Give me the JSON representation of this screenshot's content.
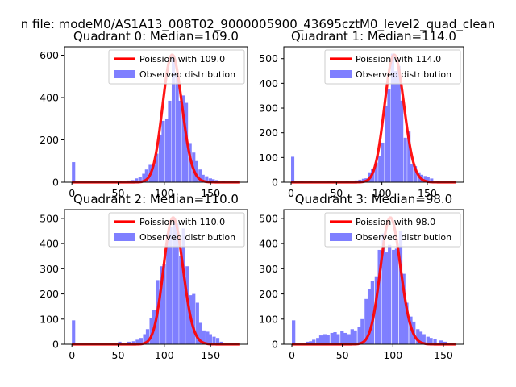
{
  "figure": {
    "suptitle": "n file: modeM0/AS1A13_008T02_9000005900_43695cztM0_level2_quad_clean"
  },
  "colors": {
    "observed": "#7f7fff",
    "poisson": "#ff0000"
  },
  "chart_data": [
    {
      "type": "bar",
      "title": "Quadrant 0: Median=109.0",
      "xlim": [
        -8,
        190
      ],
      "ylim": [
        0,
        640
      ],
      "xticks": [
        0,
        50,
        100,
        150
      ],
      "yticks": [
        0,
        200,
        400,
        600
      ],
      "legend_position": "top-right",
      "series": [
        {
          "name": "Observed distribution",
          "bin_width": 3.6,
          "bins": [
            [
              0,
              95
            ],
            [
              50,
              5
            ],
            [
              60,
              8
            ],
            [
              64,
              10
            ],
            [
              68,
              18
            ],
            [
              72,
              25
            ],
            [
              76,
              40
            ],
            [
              79,
              60
            ],
            [
              83,
              82
            ],
            [
              87,
              82
            ],
            [
              90,
              135
            ],
            [
              94,
              225
            ],
            [
              97,
              290
            ],
            [
              101,
              300
            ],
            [
              104,
              385
            ],
            [
              108,
              600
            ],
            [
              112,
              515
            ],
            [
              115,
              385
            ],
            [
              119,
              410
            ],
            [
              122,
              375
            ],
            [
              126,
              185
            ],
            [
              130,
              140
            ],
            [
              133,
              100
            ],
            [
              137,
              60
            ],
            [
              140,
              35
            ],
            [
              144,
              28
            ],
            [
              148,
              18
            ],
            [
              151,
              14
            ],
            [
              155,
              10
            ],
            [
              162,
              5
            ]
          ]
        },
        {
          "name": "Poission with 109.0",
          "mean": 109.0
        }
      ]
    },
    {
      "type": "bar",
      "title": "Quadrant 1: Median=114.0",
      "xlim": [
        -8,
        190
      ],
      "ylim": [
        0,
        548
      ],
      "xticks": [
        0,
        50,
        100,
        150
      ],
      "yticks": [
        0,
        100,
        200,
        300,
        400,
        500
      ],
      "legend_position": "top-right",
      "series": [
        {
          "name": "Observed distribution",
          "bin_width": 3.6,
          "bins": [
            [
              0,
              103
            ],
            [
              10,
              5
            ],
            [
              20,
              5
            ],
            [
              40,
              4
            ],
            [
              60,
              5
            ],
            [
              70,
              7
            ],
            [
              74,
              10
            ],
            [
              78,
              14
            ],
            [
              81,
              16
            ],
            [
              85,
              40
            ],
            [
              88,
              55
            ],
            [
              92,
              80
            ],
            [
              96,
              105
            ],
            [
              99,
              160
            ],
            [
              103,
              310
            ],
            [
              106,
              375
            ],
            [
              110,
              520
            ],
            [
              113,
              450
            ],
            [
              117,
              470
            ],
            [
              120,
              330
            ],
            [
              124,
              180
            ],
            [
              128,
              205
            ],
            [
              131,
              75
            ],
            [
              135,
              65
            ],
            [
              139,
              40
            ],
            [
              142,
              30
            ],
            [
              146,
              25
            ],
            [
              149,
              20
            ],
            [
              153,
              15
            ],
            [
              160,
              5
            ]
          ]
        },
        {
          "name": "Poission with 114.0",
          "mean": 114.0
        }
      ]
    },
    {
      "type": "bar",
      "title": "Quadrant 2: Median=110.0",
      "xlim": [
        -8,
        190
      ],
      "ylim": [
        0,
        535
      ],
      "xticks": [
        0,
        50,
        100,
        150
      ],
      "yticks": [
        0,
        100,
        200,
        300,
        400,
        500
      ],
      "legend_position": "top-right",
      "series": [
        {
          "name": "Observed distribution",
          "bin_width": 3.6,
          "bins": [
            [
              0,
              95
            ],
            [
              50,
              10
            ],
            [
              60,
              10
            ],
            [
              65,
              12
            ],
            [
              69,
              18
            ],
            [
              73,
              25
            ],
            [
              77,
              40
            ],
            [
              80,
              60
            ],
            [
              84,
              105
            ],
            [
              87,
              135
            ],
            [
              91,
              255
            ],
            [
              95,
              310
            ],
            [
              98,
              320
            ],
            [
              102,
              440
            ],
            [
              105,
              465
            ],
            [
              109,
              500
            ],
            [
              112,
              480
            ],
            [
              116,
              350
            ],
            [
              119,
              460
            ],
            [
              123,
              310
            ],
            [
              127,
              195
            ],
            [
              130,
              200
            ],
            [
              134,
              165
            ],
            [
              137,
              85
            ],
            [
              141,
              55
            ],
            [
              145,
              50
            ],
            [
              148,
              40
            ],
            [
              152,
              30
            ],
            [
              156,
              25
            ],
            [
              160,
              10
            ]
          ]
        },
        {
          "name": "Poission with 110.0",
          "mean": 110.0
        }
      ]
    },
    {
      "type": "bar",
      "title": "Quadrant 3: Median=98.0",
      "xlim": [
        -8,
        170
      ],
      "ylim": [
        0,
        535
      ],
      "xticks": [
        0,
        50,
        100,
        150
      ],
      "yticks": [
        0,
        100,
        200,
        300,
        400,
        500
      ],
      "legend_position": "top-right",
      "series": [
        {
          "name": "Observed distribution",
          "bin_width": 3.4,
          "bins": [
            [
              0,
              95
            ],
            [
              14,
              10
            ],
            [
              17,
              12
            ],
            [
              20,
              18
            ],
            [
              24,
              25
            ],
            [
              27,
              35
            ],
            [
              31,
              40
            ],
            [
              34,
              38
            ],
            [
              38,
              45
            ],
            [
              41,
              48
            ],
            [
              44,
              40
            ],
            [
              48,
              52
            ],
            [
              51,
              45
            ],
            [
              55,
              40
            ],
            [
              58,
              60
            ],
            [
              61,
              55
            ],
            [
              65,
              70
            ],
            [
              68,
              100
            ],
            [
              72,
              180
            ],
            [
              75,
              220
            ],
            [
              78,
              250
            ],
            [
              82,
              270
            ],
            [
              85,
              375
            ],
            [
              89,
              440
            ],
            [
              92,
              365
            ],
            [
              95,
              395
            ],
            [
              99,
              375
            ],
            [
              102,
              380
            ],
            [
              106,
              450
            ],
            [
              109,
              280
            ],
            [
              112,
              165
            ],
            [
              116,
              110
            ],
            [
              119,
              90
            ],
            [
              123,
              60
            ],
            [
              126,
              50
            ],
            [
              129,
              40
            ],
            [
              133,
              30
            ],
            [
              136,
              25
            ],
            [
              140,
              20
            ],
            [
              146,
              15
            ],
            [
              150,
              10
            ]
          ]
        },
        {
          "name": "Poission with 98.0",
          "mean": 98.0
        }
      ]
    }
  ]
}
